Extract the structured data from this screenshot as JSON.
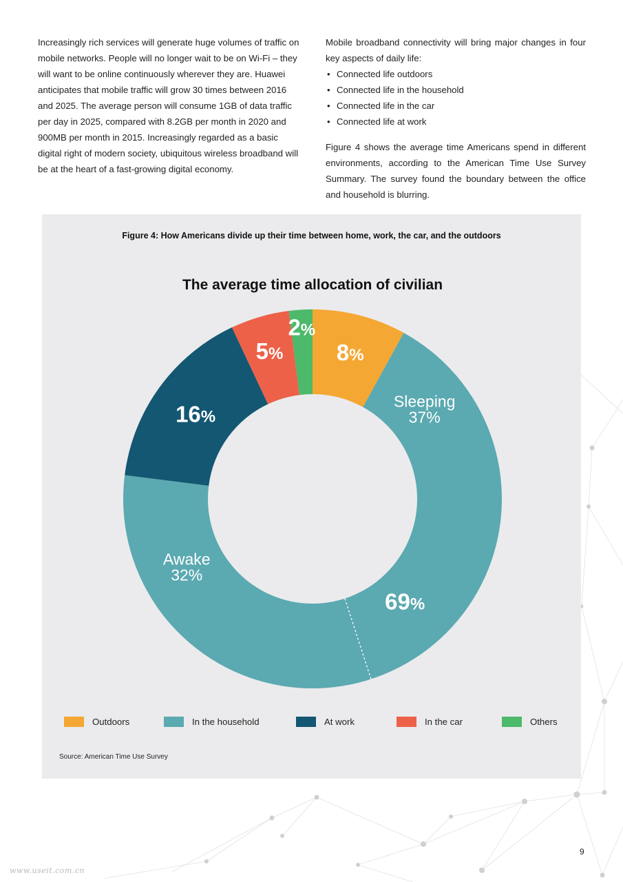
{
  "left_column": {
    "paragraph": "Increasingly rich services will generate huge volumes of traffic on mobile networks. People will no longer wait to be on Wi-Fi – they will want to be online continuously wherever they are. Huawei anticipates that mobile traffic will grow 30 times between 2016 and 2025. The average person will consume 1GB of data traffic per day in 2025, compared with 8.2GB per month in 2020 and 900MB per month in 2015. Increasingly regarded as a basic digital right of modern society, ubiquitous wireless broadband will be at the heart of a fast-growing digital economy."
  },
  "right_column": {
    "intro": "Mobile broadband connectivity will bring major changes in four key aspects of daily life:",
    "bullets": [
      "Connected life outdoors",
      "Connected life in the household",
      "Connected life in the car",
      "Connected life at work"
    ],
    "paragraph": "Figure 4 shows the average time Americans spend in different environments, according to the American Time Use Survey Summary. The survey found the boundary between the office and household is blurring."
  },
  "figure": {
    "caption": "Figure 4: How Americans divide up their time between home, work, the car, and the outdoors",
    "source": "Source: American Time Use Survey"
  },
  "chart_data": {
    "type": "pie",
    "variant": "donut",
    "title": "The average time allocation of civilian",
    "slices": [
      {
        "name": "Outdoors",
        "value": 8,
        "label": "8%",
        "color": "#f5a733"
      },
      {
        "name": "In the household",
        "value": 69,
        "label": "69%",
        "color": "#5ba9b1",
        "sub_segments": [
          {
            "name": "Sleeping",
            "value": 37,
            "label_name": "Sleeping",
            "label_value": "37%"
          },
          {
            "name": "Awake",
            "value": 32,
            "label_name": "Awake",
            "label_value": "32%"
          }
        ]
      },
      {
        "name": "At work",
        "value": 16,
        "label": "16%",
        "color": "#135773"
      },
      {
        "name": "In the car",
        "value": 5,
        "label": "5%",
        "color": "#ed6149"
      },
      {
        "name": "Others",
        "value": 2,
        "label": "2%",
        "color": "#4db96a"
      }
    ],
    "legend": [
      "Outdoors",
      "In the household",
      "At work",
      "In the car",
      "Others"
    ],
    "legend_placement": "bottom"
  },
  "page": {
    "number": "9",
    "watermark": "www.useit.com.cn"
  }
}
